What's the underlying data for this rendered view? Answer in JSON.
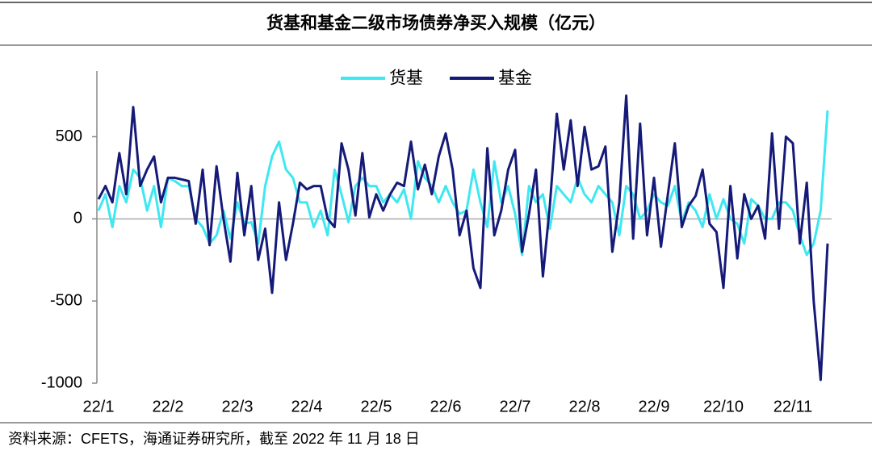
{
  "chart_data": {
    "type": "line",
    "title": "货基和基金二级市场债券净买入规模（亿元）",
    "source": "资料来源：CFETS，海通证券研究所，截至 2022 年 11 月 18 日",
    "categories": [
      "22/1",
      null,
      null,
      null,
      null,
      null,
      null,
      null,
      null,
      null,
      "22/2",
      null,
      null,
      null,
      null,
      null,
      null,
      null,
      null,
      null,
      "22/3",
      null,
      null,
      null,
      null,
      null,
      null,
      null,
      null,
      null,
      "22/4",
      null,
      null,
      null,
      null,
      null,
      null,
      null,
      null,
      null,
      "22/5",
      null,
      null,
      null,
      null,
      null,
      null,
      null,
      null,
      null,
      "22/6",
      null,
      null,
      null,
      null,
      null,
      null,
      null,
      null,
      null,
      "22/7",
      null,
      null,
      null,
      null,
      null,
      null,
      null,
      null,
      null,
      "22/8",
      null,
      null,
      null,
      null,
      null,
      null,
      null,
      null,
      null,
      "22/9",
      null,
      null,
      null,
      null,
      null,
      null,
      null,
      null,
      null,
      "22/10",
      null,
      null,
      null,
      null,
      null,
      null,
      null,
      null,
      null,
      "22/11",
      null,
      null,
      null,
      null,
      null
    ],
    "series": [
      {
        "name": "货基",
        "color": "#3ee8f0",
        "values": [
          50,
          150,
          -50,
          200,
          100,
          300,
          250,
          50,
          200,
          -50,
          250,
          230,
          200,
          200,
          0,
          -50,
          -150,
          -100,
          50,
          -120,
          100,
          -30,
          -20,
          -150,
          200,
          380,
          470,
          300,
          250,
          100,
          100,
          -50,
          50,
          -100,
          300,
          150,
          -20,
          200,
          250,
          200,
          200,
          100,
          150,
          100,
          180,
          0,
          350,
          250,
          200,
          100,
          200,
          100,
          30,
          50,
          300,
          100,
          -50,
          350,
          100,
          200,
          30,
          -220,
          200,
          100,
          150,
          -60,
          200,
          150,
          100,
          250,
          150,
          100,
          200,
          150,
          100,
          -100,
          200,
          150,
          0,
          50,
          150,
          100,
          80,
          200,
          -20,
          100,
          50,
          -50,
          150,
          0,
          120,
          0,
          -30,
          -150,
          120,
          80,
          0,
          0,
          100,
          100,
          50,
          -100,
          -220,
          -150,
          50,
          660
        ]
      },
      {
        "name": "基金",
        "color": "#151a78",
        "values": [
          120,
          200,
          100,
          400,
          150,
          680,
          200,
          300,
          380,
          100,
          250,
          250,
          240,
          230,
          -30,
          300,
          -160,
          320,
          0,
          -260,
          280,
          -100,
          200,
          -250,
          -60,
          -450,
          100,
          -250,
          -30,
          220,
          180,
          200,
          200,
          0,
          -50,
          460,
          300,
          20,
          400,
          10,
          150,
          50,
          150,
          220,
          200,
          470,
          180,
          330,
          150,
          380,
          520,
          300,
          -100,
          50,
          -300,
          -420,
          430,
          -100,
          50,
          300,
          420,
          -200,
          30,
          300,
          -350,
          80,
          640,
          300,
          600,
          200,
          560,
          300,
          320,
          440,
          -200,
          100,
          750,
          -120,
          580,
          -100,
          250,
          -170,
          150,
          460,
          -50,
          80,
          140,
          300,
          -30,
          -80,
          -420,
          200,
          -240,
          150,
          0,
          80,
          -120,
          520,
          -60,
          500,
          460,
          -150,
          220,
          -500,
          -980,
          -150
        ]
      }
    ],
    "ylim": [
      -1000,
      900
    ],
    "yticks": [
      -1000,
      -500,
      0,
      500
    ],
    "legend": "top"
  }
}
